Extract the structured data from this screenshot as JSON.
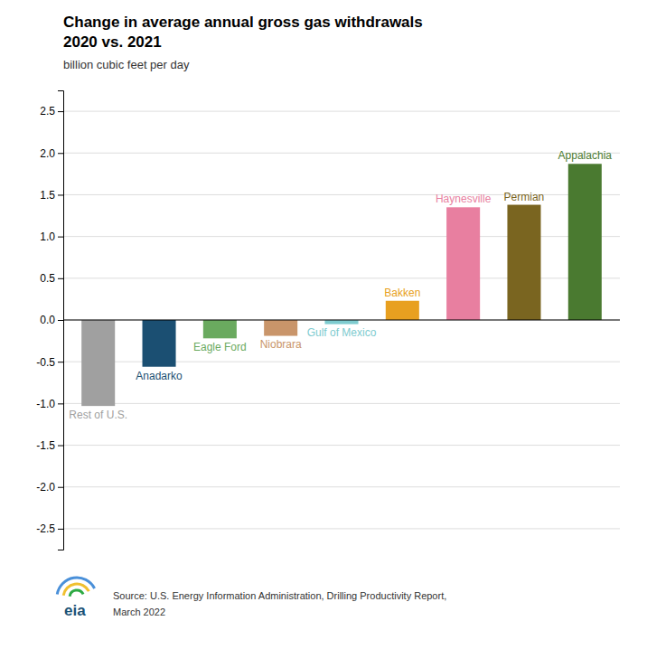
{
  "chart_data": {
    "type": "bar",
    "title": "Change in average annual gross gas withdrawals",
    "subtitle": "2020 vs. 2021",
    "ylabel": "billion cubic feet per day",
    "categories": [
      "Rest of U.S.",
      "Anadarko",
      "Eagle Ford",
      "Niobrara",
      "Gulf of Mexico",
      "Bakken",
      "Haynesville",
      "Permian",
      "Appalachia"
    ],
    "values": [
      -1.03,
      -0.56,
      -0.22,
      -0.19,
      -0.05,
      0.23,
      1.35,
      1.38,
      1.87
    ],
    "colors": [
      "#a0a0a0",
      "#1b4f72",
      "#6aaa5f",
      "#c9956a",
      "#7ecbcf",
      "#e8a020",
      "#e87fa0",
      "#7a6520",
      "#4a7a30"
    ],
    "ylim": [
      -2.75,
      2.75
    ],
    "yticks": [
      -2.5,
      {
        "value": -2,
        "label": "-2.0"
      },
      -1.5,
      {
        "value": -1,
        "label": "-1.0"
      },
      -0.5,
      {
        "value": 0,
        "label": "0.0"
      },
      0.5,
      {
        "value": 1,
        "label": "1.0"
      },
      1.5,
      {
        "value": 2,
        "label": "2.0"
      },
      2.5
    ],
    "grid": true,
    "annotations": [
      "Source: U.S. Energy Information Administration, Drilling Productivity Report,",
      "March 2022",
      "eia"
    ]
  }
}
